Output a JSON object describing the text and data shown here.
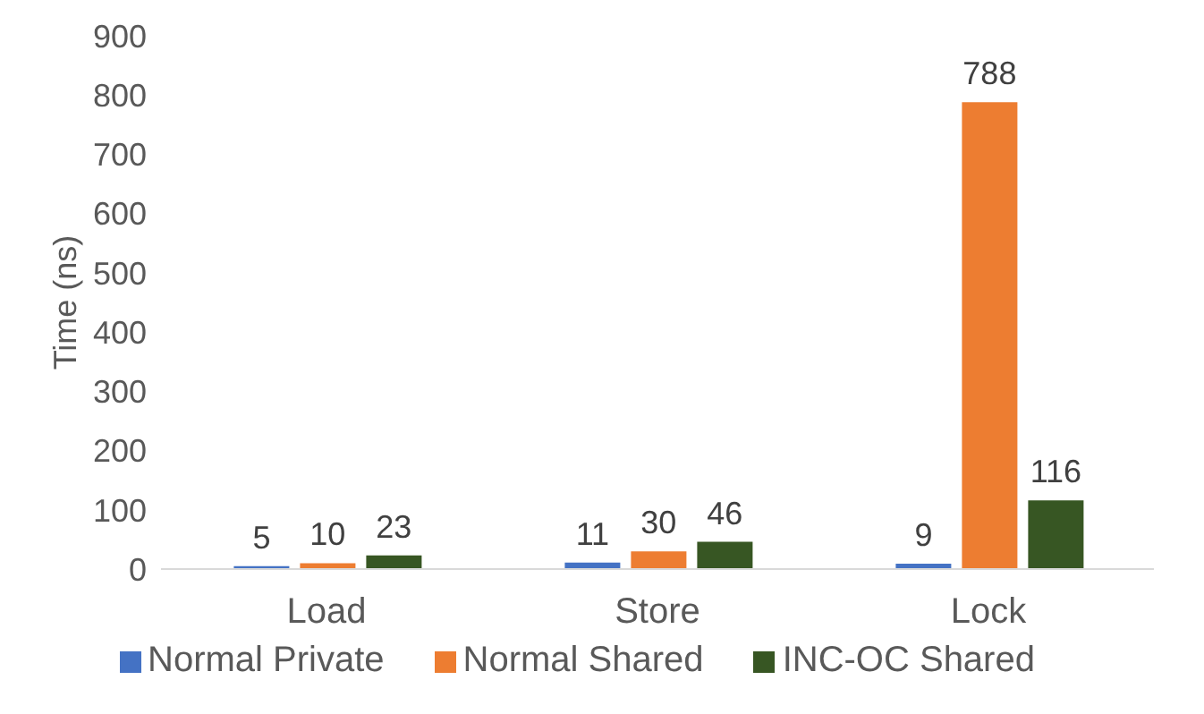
{
  "chart_data": {
    "type": "bar",
    "categories": [
      "Load",
      "Store",
      "Lock"
    ],
    "ylabel": "Time (ns)",
    "ylim": [
      0,
      900
    ],
    "yticks": [
      0,
      100,
      200,
      300,
      400,
      500,
      600,
      700,
      800,
      900
    ],
    "grid": false,
    "legend": "bottom",
    "data_labels": true,
    "series": [
      {
        "name": "Normal Private",
        "color": "#4472c4",
        "values": [
          5,
          11,
          9
        ]
      },
      {
        "name": "Normal Shared",
        "color": "#ed7d31",
        "values": [
          10,
          30,
          788
        ]
      },
      {
        "name": "INC-OC Shared",
        "color": "#375623",
        "values": [
          23,
          46,
          116
        ]
      }
    ]
  }
}
